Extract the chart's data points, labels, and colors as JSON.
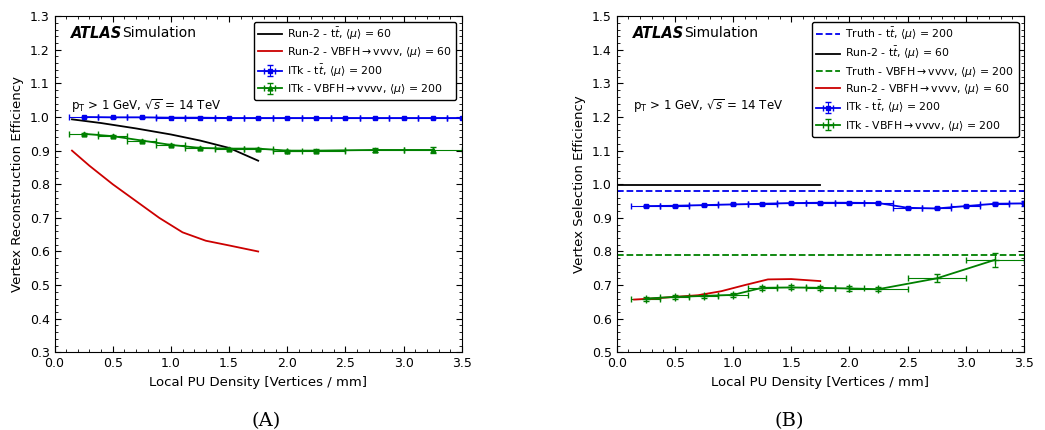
{
  "panel_A": {
    "xlabel": "Local PU Density [Vertices / mm]",
    "ylabel": "Vertex Reconstruction Efficiency",
    "xlim": [
      0,
      3.5
    ],
    "ylim": [
      0.3,
      1.3
    ],
    "yticks": [
      0.3,
      0.4,
      0.5,
      0.6,
      0.7,
      0.8,
      0.9,
      1.0,
      1.1,
      1.2,
      1.3
    ],
    "series": [
      {
        "label": "ITk - t$\\bar{t}$, $\\langle\\mu\\rangle$ = 200",
        "color": "#0000EE",
        "style": "solid",
        "marker": "s",
        "markersize": 3.5,
        "x": [
          0.25,
          0.5,
          0.75,
          1.0,
          1.25,
          1.5,
          1.75,
          2.0,
          2.25,
          2.5,
          2.75,
          3.0,
          3.25,
          3.5
        ],
        "y": [
          1.0,
          0.999,
          0.999,
          0.998,
          0.998,
          0.997,
          0.997,
          0.997,
          0.997,
          0.997,
          0.997,
          0.997,
          0.997,
          0.997
        ],
        "xerr": [
          0.125,
          0.125,
          0.125,
          0.125,
          0.125,
          0.125,
          0.125,
          0.125,
          0.125,
          0.125,
          0.125,
          0.125,
          0.125,
          0.125
        ],
        "yerr": [
          0.001,
          0.001,
          0.001,
          0.001,
          0.001,
          0.001,
          0.001,
          0.001,
          0.001,
          0.001,
          0.001,
          0.001,
          0.001,
          0.001
        ]
      },
      {
        "label": "Run-2 - t$\\bar{t}$, $\\langle\\mu\\rangle$ = 60",
        "color": "#000000",
        "style": "solid",
        "marker": null,
        "x": [
          0.15,
          0.4,
          0.7,
          1.0,
          1.25,
          1.5,
          1.75
        ],
        "y": [
          0.993,
          0.982,
          0.966,
          0.948,
          0.93,
          0.908,
          0.87
        ],
        "xerr": null,
        "yerr": null
      },
      {
        "label": "ITk - VBFH$\\rightarrow$vvvv, $\\langle\\mu\\rangle$ = 200",
        "color": "#008000",
        "style": "solid",
        "marker": "^",
        "markersize": 3.5,
        "x": [
          0.25,
          0.5,
          0.75,
          1.0,
          1.25,
          1.5,
          1.75,
          2.0,
          2.25,
          2.75,
          3.25
        ],
        "y": [
          0.95,
          0.943,
          0.93,
          0.917,
          0.908,
          0.906,
          0.906,
          0.9,
          0.9,
          0.902,
          0.902
        ],
        "xerr": [
          0.125,
          0.125,
          0.125,
          0.125,
          0.125,
          0.125,
          0.125,
          0.125,
          0.25,
          0.25,
          0.25
        ],
        "yerr": [
          0.003,
          0.003,
          0.003,
          0.003,
          0.003,
          0.003,
          0.003,
          0.003,
          0.004,
          0.005,
          0.008
        ]
      },
      {
        "label": "Run-2 - VBFH$\\rightarrow$vvvv, $\\langle\\mu\\rangle$ = 60",
        "color": "#CC0000",
        "style": "solid",
        "marker": null,
        "x": [
          0.15,
          0.3,
          0.5,
          0.7,
          0.9,
          1.1,
          1.3,
          1.5,
          1.75
        ],
        "y": [
          0.9,
          0.855,
          0.8,
          0.75,
          0.7,
          0.657,
          0.632,
          0.618,
          0.6
        ],
        "xerr": null,
        "yerr": null
      }
    ]
  },
  "panel_B": {
    "xlabel": "Local PU Density [Vertices / mm]",
    "ylabel": "Vertex Selection Efficiency",
    "xlim": [
      0,
      3.5
    ],
    "ylim": [
      0.5,
      1.5
    ],
    "yticks": [
      0.5,
      0.6,
      0.7,
      0.8,
      0.9,
      1.0,
      1.1,
      1.2,
      1.3,
      1.4,
      1.5
    ],
    "series": [
      {
        "label": "ITk - t$\\bar{t}$, $\\langle\\mu\\rangle$ = 200",
        "color": "#0000EE",
        "style": "solid",
        "marker": "s",
        "markersize": 3.5,
        "x": [
          0.25,
          0.5,
          0.75,
          1.0,
          1.25,
          1.5,
          1.75,
          2.0,
          2.25,
          2.5,
          2.75,
          3.0,
          3.25,
          3.5
        ],
        "y": [
          0.935,
          0.936,
          0.938,
          0.94,
          0.942,
          0.944,
          0.945,
          0.945,
          0.944,
          0.93,
          0.928,
          0.935,
          0.942,
          0.943
        ],
        "xerr": [
          0.125,
          0.125,
          0.125,
          0.125,
          0.125,
          0.125,
          0.125,
          0.125,
          0.125,
          0.125,
          0.125,
          0.125,
          0.125,
          0.125
        ],
        "yerr": [
          0.003,
          0.003,
          0.003,
          0.003,
          0.003,
          0.003,
          0.003,
          0.003,
          0.003,
          0.003,
          0.003,
          0.003,
          0.004,
          0.007
        ]
      },
      {
        "label": "Truth - t$\\bar{t}$, $\\langle\\mu\\rangle$ = 200",
        "color": "#0000EE",
        "style": "dashed",
        "marker": null,
        "x": [
          0.0,
          3.5
        ],
        "y": [
          0.98,
          0.98
        ],
        "xerr": null,
        "yerr": null
      },
      {
        "label": "Run-2 - t$\\bar{t}$, $\\langle\\mu\\rangle$ = 60",
        "color": "#000000",
        "style": "solid",
        "marker": null,
        "x": [
          0.0,
          1.75
        ],
        "y": [
          0.998,
          0.998
        ],
        "xerr": null,
        "yerr": null
      },
      {
        "label": "ITk - VBFH$\\rightarrow$vvvv, $\\langle\\mu\\rangle$ = 200",
        "color": "#008000",
        "style": "solid",
        "marker": "+",
        "markersize": 6,
        "x": [
          0.25,
          0.5,
          0.75,
          1.0,
          1.25,
          1.5,
          1.75,
          2.0,
          2.25,
          2.75,
          3.25
        ],
        "y": [
          0.66,
          0.665,
          0.668,
          0.671,
          0.692,
          0.693,
          0.692,
          0.69,
          0.688,
          0.72,
          0.775
        ],
        "xerr": [
          0.125,
          0.125,
          0.125,
          0.125,
          0.125,
          0.125,
          0.125,
          0.125,
          0.25,
          0.25,
          0.25
        ],
        "yerr": [
          0.006,
          0.006,
          0.006,
          0.006,
          0.006,
          0.006,
          0.006,
          0.006,
          0.006,
          0.012,
          0.022
        ]
      },
      {
        "label": "Truth - VBFH$\\rightarrow$vvvv, $\\langle\\mu\\rangle$ = 200",
        "color": "#008000",
        "style": "dashed",
        "marker": null,
        "x": [
          0.0,
          3.5
        ],
        "y": [
          0.79,
          0.79
        ],
        "xerr": null,
        "yerr": null
      },
      {
        "label": "Run-2 - VBFH$\\rightarrow$vvvv, $\\langle\\mu\\rangle$ = 60",
        "color": "#CC0000",
        "style": "solid",
        "marker": null,
        "x": [
          0.15,
          0.3,
          0.5,
          0.7,
          0.9,
          1.1,
          1.3,
          1.5,
          1.75
        ],
        "y": [
          0.657,
          0.66,
          0.665,
          0.67,
          0.682,
          0.7,
          0.717,
          0.718,
          0.712
        ],
        "xerr": null,
        "yerr": null
      }
    ]
  },
  "label_A": "(A)",
  "label_B": "(B)"
}
